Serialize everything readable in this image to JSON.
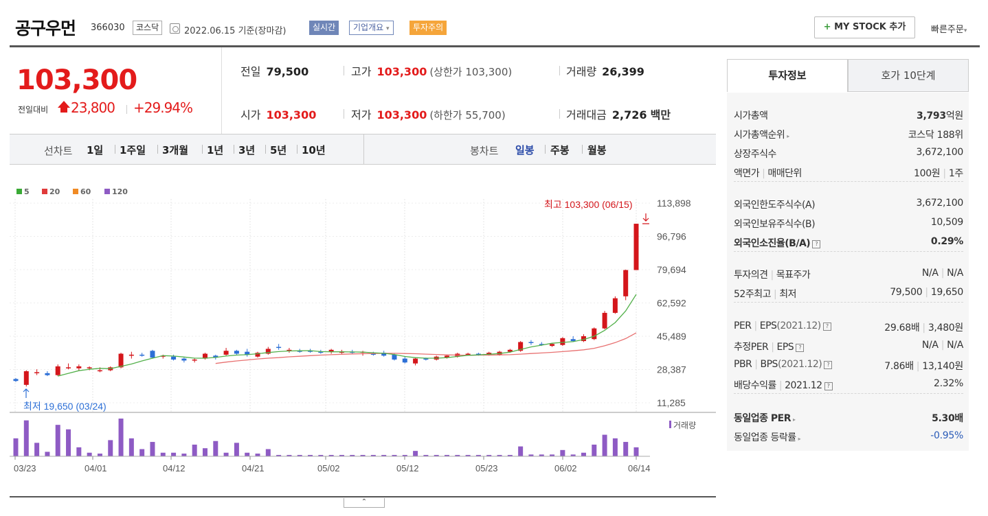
{
  "header": {
    "name": "공구우먼",
    "code": "366030",
    "market": "코스닥",
    "date": "2022.06.15 기준(장마감)",
    "badge_realtime": "실시간",
    "badge_company": "기업개요",
    "badge_company_arrow": "▾",
    "badge_warn": "투자주의",
    "mystock_plus": "+",
    "mystock": "MY STOCK 추가",
    "quick_order": "빠른주문",
    "quick_order_arrow": "▾"
  },
  "summary": {
    "price": "103,300",
    "diff_label": "전일대비",
    "diff": "23,800",
    "pct": "+29.94%",
    "prev_label": "전일",
    "prev": "79,500",
    "high_label": "고가",
    "high": "103,300",
    "high_sub": "(상한가 103,300)",
    "volume_label": "거래량",
    "volume": "26,399",
    "open_label": "시가",
    "open": "103,300",
    "low_label": "저가",
    "low": "103,300",
    "low_sub": "(하한가 55,700)",
    "amount_label": "거래대금",
    "amount": "2,726",
    "amount_unit": "백만"
  },
  "periodbar": {
    "line_label": "선차트",
    "line_items": [
      "1일",
      "1주일",
      "3개월",
      "1년",
      "3년",
      "5년",
      "10년"
    ],
    "candle_label": "봉차트",
    "candle_items": [
      "일봉",
      "주봉",
      "월봉"
    ],
    "candle_selected": "일봉"
  },
  "legend": [
    {
      "label": "5",
      "color": "#3aaa35"
    },
    {
      "label": "20",
      "color": "#e03a3a"
    },
    {
      "label": "60",
      "color": "#f08a24"
    },
    {
      "label": "120",
      "color": "#8e5bc4"
    }
  ],
  "chart_data": {
    "type": "candlestick",
    "y_ticks": [
      "113,898",
      "96,796",
      "79,694",
      "62,592",
      "45,489",
      "28,387",
      "11,285"
    ],
    "x_ticks": [
      "03/23",
      "04/01",
      "04/12",
      "04/21",
      "05/02",
      "05/12",
      "05/23",
      "06/02",
      "06/14"
    ],
    "high_annotation": "최고 103,300 (06/15)",
    "low_annotation": "최저 19,650 (03/24)",
    "volume_label": "거래량",
    "up_color": "#d4161b",
    "down_color": "#2c6fd6",
    "candles": [
      [
        23500,
        24000,
        22000,
        22500
      ],
      [
        20500,
        28000,
        19650,
        27500
      ],
      [
        27000,
        28500,
        25500,
        27000
      ],
      [
        26500,
        27500,
        25000,
        25500
      ],
      [
        25500,
        31000,
        25000,
        30000
      ],
      [
        29500,
        31500,
        28500,
        29500
      ],
      [
        29000,
        31000,
        28000,
        30000
      ],
      [
        29000,
        30000,
        28000,
        29500
      ],
      [
        28000,
        29500,
        27000,
        28000
      ],
      [
        28000,
        30000,
        27500,
        29500
      ],
      [
        29500,
        37000,
        29000,
        36500
      ],
      [
        36000,
        37500,
        34000,
        36000
      ],
      [
        36000,
        37000,
        35000,
        35500
      ],
      [
        38000,
        38500,
        34000,
        34500
      ],
      [
        35000,
        36000,
        34000,
        35500
      ],
      [
        35000,
        36000,
        33000,
        33500
      ],
      [
        34000,
        34500,
        32000,
        33000
      ],
      [
        33000,
        34000,
        32000,
        33500
      ],
      [
        34000,
        37000,
        33500,
        36500
      ],
      [
        35500,
        36000,
        33500,
        34500
      ],
      [
        36000,
        39500,
        35500,
        38000
      ],
      [
        38000,
        38500,
        36000,
        36500
      ],
      [
        37500,
        39000,
        35000,
        36000
      ],
      [
        35000,
        37500,
        34500,
        37000
      ],
      [
        36500,
        40000,
        36000,
        39000
      ],
      [
        40000,
        41500,
        38500,
        39500
      ],
      [
        38000,
        39500,
        37000,
        38500
      ],
      [
        38000,
        39000,
        37000,
        37500
      ],
      [
        38000,
        39000,
        37000,
        37500
      ],
      [
        37500,
        38500,
        36500,
        37000
      ],
      [
        37500,
        39000,
        36500,
        38500
      ],
      [
        37500,
        38500,
        36500,
        37500
      ],
      [
        37500,
        38500,
        36500,
        37000
      ],
      [
        37000,
        38000,
        35500,
        37500
      ],
      [
        36500,
        37500,
        35500,
        36000
      ],
      [
        37000,
        38000,
        35000,
        35500
      ],
      [
        36000,
        36500,
        33000,
        33500
      ],
      [
        34000,
        35000,
        31500,
        32000
      ],
      [
        31500,
        34500,
        30500,
        34000
      ],
      [
        34000,
        34500,
        33000,
        33500
      ],
      [
        33500,
        35500,
        33000,
        35000
      ],
      [
        34500,
        36000,
        34000,
        35500
      ],
      [
        35000,
        37000,
        34500,
        36500
      ],
      [
        36000,
        37000,
        35500,
        36500
      ],
      [
        36500,
        37000,
        35500,
        36000
      ],
      [
        36000,
        37500,
        35500,
        37000
      ],
      [
        36000,
        38000,
        35500,
        37500
      ],
      [
        37500,
        39000,
        37000,
        38500
      ],
      [
        38000,
        43000,
        37500,
        42500
      ],
      [
        42500,
        43500,
        41000,
        42000
      ],
      [
        41500,
        42500,
        40500,
        41000
      ],
      [
        40500,
        42000,
        40000,
        41500
      ],
      [
        41000,
        45000,
        40500,
        44500
      ],
      [
        44000,
        45500,
        42500,
        43000
      ],
      [
        43000,
        46500,
        42500,
        45500
      ],
      [
        44000,
        50000,
        43500,
        49500
      ],
      [
        49500,
        58500,
        49000,
        57500
      ],
      [
        57500,
        66000,
        57000,
        65000
      ],
      [
        66000,
        79700,
        64000,
        79500
      ],
      [
        79500,
        103300,
        79500,
        103300
      ]
    ],
    "ma5": [
      null,
      null,
      null,
      null,
      25000,
      26400,
      27800,
      28500,
      29000,
      28800,
      30000,
      31200,
      32800,
      34200,
      35500,
      35300,
      34800,
      34200,
      34200,
      34600,
      35300,
      35800,
      36000,
      36500,
      37100,
      37600,
      37900,
      38000,
      38100,
      37600,
      37500,
      37500,
      37400,
      37300,
      37000,
      36700,
      36100,
      35100,
      34500,
      34200,
      34200,
      34500,
      35100,
      35700,
      35900,
      36200,
      36600,
      37300,
      38700,
      40000,
      40900,
      41900,
      42300,
      42700,
      43800,
      45500,
      48500,
      52500,
      58500,
      67000
    ],
    "ma20": [
      null,
      null,
      null,
      null,
      null,
      null,
      null,
      null,
      null,
      null,
      null,
      null,
      null,
      null,
      null,
      null,
      null,
      null,
      null,
      31500,
      32200,
      32800,
      33300,
      33800,
      34200,
      34500,
      34900,
      35200,
      35500,
      35800,
      36000,
      36200,
      36400,
      36500,
      36600,
      36700,
      36700,
      36600,
      36500,
      36300,
      36100,
      35900,
      35800,
      35700,
      35800,
      35800,
      35900,
      36000,
      36300,
      36600,
      36900,
      37200,
      37600,
      38000,
      38500,
      39300,
      40600,
      42200,
      44300,
      47200
    ],
    "volume": [
      2,
      4,
      1.5,
      0.5,
      3.5,
      3,
      1,
      0.4,
      0.3,
      1.8,
      4.2,
      2,
      0.8,
      1.6,
      0.4,
      0.4,
      0.3,
      1.3,
      0.9,
      1.7,
      0.4,
      1.5,
      0.4,
      0.3,
      0.8,
      0.1,
      0.1,
      0.1,
      0.1,
      0.1,
      0.1,
      0.1,
      0.1,
      0.1,
      0.1,
      0.1,
      0.1,
      0.1,
      0.6,
      0.1,
      0.1,
      0.1,
      0.1,
      0.1,
      0.1,
      0.1,
      0.1,
      0.1,
      1.1,
      0.2,
      0.2,
      0.2,
      0.7,
      0.2,
      0.4,
      1.3,
      2.4,
      2,
      1.6,
      1
    ]
  },
  "rightpanel": {
    "tab_info": "투자정보",
    "tab_hoga": "호가 10단계",
    "rows": [
      {
        "label": "시가총액",
        "value": "3,793",
        "value_unit": "억원"
      },
      {
        "label": "시가총액순위",
        "value": "코스닥 188위"
      },
      {
        "label": "상장주식수",
        "value": "3,672,100"
      },
      {
        "label": "액면가",
        "label2": "매매단위",
        "value": "100원",
        "value2": "1주"
      },
      {
        "label": "외국인한도주식수(A)",
        "value": "3,672,100"
      },
      {
        "label": "외국인보유주식수(B)",
        "value": "10,509"
      },
      {
        "label": "외국인소진율(B/A)",
        "value": "0.29%"
      },
      {
        "label": "투자의견",
        "label2": "목표주가",
        "value": "N/A",
        "value2": "N/A"
      },
      {
        "label": "52주최고",
        "label2": "최저",
        "value": "79,500",
        "value2": "19,650"
      },
      {
        "label": "PER",
        "label2": "EPS",
        "label2_sub": "(2021.12)",
        "value": "29.68배",
        "value2": "3,480원"
      },
      {
        "label": "추정PER",
        "label2": "EPS",
        "value": "N/A",
        "value2": "N/A"
      },
      {
        "label": "PBR",
        "label2": "BPS",
        "label2_sub": "(2021.12)",
        "value": "7.86배",
        "value2": "13,140원"
      },
      {
        "label": "배당수익률",
        "label2": "2021.12",
        "value": "2.32%"
      },
      {
        "label": "동일업종 PER",
        "value": "5.30배"
      },
      {
        "label": "동일업종 등락률",
        "value": "-0.95%"
      }
    ],
    "help_glyph": "?",
    "more_glyph": "▸",
    "separator_glyph": "|"
  },
  "collapse_glyph": "⌃"
}
